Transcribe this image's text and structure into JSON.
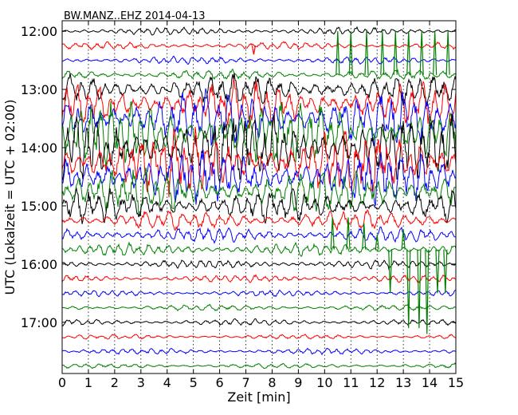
{
  "chart_data": {
    "type": "line",
    "title": "BW.MANZ..EHZ 2014-04-13",
    "xlabel": "Zeit  [min]",
    "ylabel": "UTC (Lokalzeit = UTC + 02:00)",
    "xlim": [
      0,
      15
    ],
    "x_ticks": [
      "0",
      "1",
      "2",
      "3",
      "4",
      "5",
      "6",
      "7",
      "8",
      "9",
      "10",
      "11",
      "12",
      "13",
      "14",
      "15"
    ],
    "y_ticks": [
      {
        "hour": 12,
        "label": "12:00"
      },
      {
        "hour": 13,
        "label": "13:00"
      },
      {
        "hour": 14,
        "label": "14:00"
      },
      {
        "hour": 15,
        "label": "15:00"
      },
      {
        "hour": 16,
        "label": "16:00"
      },
      {
        "hour": 17,
        "label": "17:00"
      }
    ],
    "grid": true,
    "color_cycle": [
      "#000000",
      "#ff0000",
      "#0000ff",
      "#008000"
    ],
    "trace_interval_min": 15,
    "traces_start": "12:00",
    "traces_end": "17:45",
    "traces": [
      {
        "start": "12:00",
        "color": "#000000",
        "amplitude": 0.3
      },
      {
        "start": "12:15",
        "color": "#ff0000",
        "amplitude": 0.3
      },
      {
        "start": "12:30",
        "color": "#0000ff",
        "amplitude": 0.3
      },
      {
        "start": "12:45",
        "color": "#008000",
        "amplitude": 0.4
      },
      {
        "start": "13:00",
        "color": "#000000",
        "amplitude": 1.2
      },
      {
        "start": "13:15",
        "color": "#ff0000",
        "amplitude": 1.8
      },
      {
        "start": "13:30",
        "color": "#0000ff",
        "amplitude": 2.2
      },
      {
        "start": "13:45",
        "color": "#008000",
        "amplitude": 2.6
      },
      {
        "start": "14:00",
        "color": "#000000",
        "amplitude": 2.8
      },
      {
        "start": "14:15",
        "color": "#ff0000",
        "amplitude": 2.6
      },
      {
        "start": "14:30",
        "color": "#0000ff",
        "amplitude": 2.2
      },
      {
        "start": "14:45",
        "color": "#008000",
        "amplitude": 1.8
      },
      {
        "start": "15:00",
        "color": "#000000",
        "amplitude": 1.3
      },
      {
        "start": "15:15",
        "color": "#ff0000",
        "amplitude": 0.8
      },
      {
        "start": "15:30",
        "color": "#0000ff",
        "amplitude": 0.6
      },
      {
        "start": "15:45",
        "color": "#008000",
        "amplitude": 0.5
      },
      {
        "start": "16:00",
        "color": "#000000",
        "amplitude": 0.35
      },
      {
        "start": "16:15",
        "color": "#ff0000",
        "amplitude": 0.3
      },
      {
        "start": "16:30",
        "color": "#0000ff",
        "amplitude": 0.25
      },
      {
        "start": "16:45",
        "color": "#008000",
        "amplitude": 0.25
      },
      {
        "start": "17:00",
        "color": "#000000",
        "amplitude": 0.25
      },
      {
        "start": "17:15",
        "color": "#ff0000",
        "amplitude": 0.2
      },
      {
        "start": "17:30",
        "color": "#0000ff",
        "amplitude": 0.25
      },
      {
        "start": "17:45",
        "color": "#008000",
        "amplitude": 0.2
      }
    ],
    "spikes": [
      {
        "trace": "12:45",
        "minute": 10.5,
        "peak_hour": 12.0
      },
      {
        "trace": "12:45",
        "minute": 11.0,
        "peak_hour": 12.0
      },
      {
        "trace": "12:45",
        "minute": 11.6,
        "peak_hour": 12.0
      },
      {
        "trace": "12:45",
        "minute": 12.2,
        "peak_hour": 12.0
      },
      {
        "trace": "12:45",
        "minute": 12.7,
        "peak_hour": 12.0
      },
      {
        "trace": "12:45",
        "minute": 13.2,
        "peak_hour": 12.0
      },
      {
        "trace": "12:45",
        "minute": 13.7,
        "peak_hour": 12.0
      },
      {
        "trace": "12:45",
        "minute": 14.2,
        "peak_hour": 12.0
      },
      {
        "trace": "12:45",
        "minute": 14.7,
        "peak_hour": 12.0
      },
      {
        "trace": "12:15",
        "minute": 7.3,
        "peak_hour": 12.4
      },
      {
        "trace": "15:45",
        "minute": 10.3,
        "peak_hour": 15.2
      },
      {
        "trace": "15:45",
        "minute": 10.9,
        "peak_hour": 15.2
      },
      {
        "trace": "15:45",
        "minute": 11.5,
        "peak_hour": 15.3
      },
      {
        "trace": "15:45",
        "minute": 12.0,
        "peak_hour": 15.5
      },
      {
        "trace": "15:45",
        "minute": 12.5,
        "peak_hour": 16.5
      },
      {
        "trace": "15:45",
        "minute": 13.0,
        "peak_hour": 15.4
      },
      {
        "trace": "15:45",
        "minute": 13.2,
        "peak_hour": 17.1
      },
      {
        "trace": "15:45",
        "minute": 13.6,
        "peak_hour": 17.1
      },
      {
        "trace": "15:45",
        "minute": 13.9,
        "peak_hour": 17.2
      },
      {
        "trace": "15:45",
        "minute": 14.3,
        "peak_hour": 16.5
      },
      {
        "trace": "15:45",
        "minute": 14.6,
        "peak_hour": 16.5
      }
    ]
  }
}
